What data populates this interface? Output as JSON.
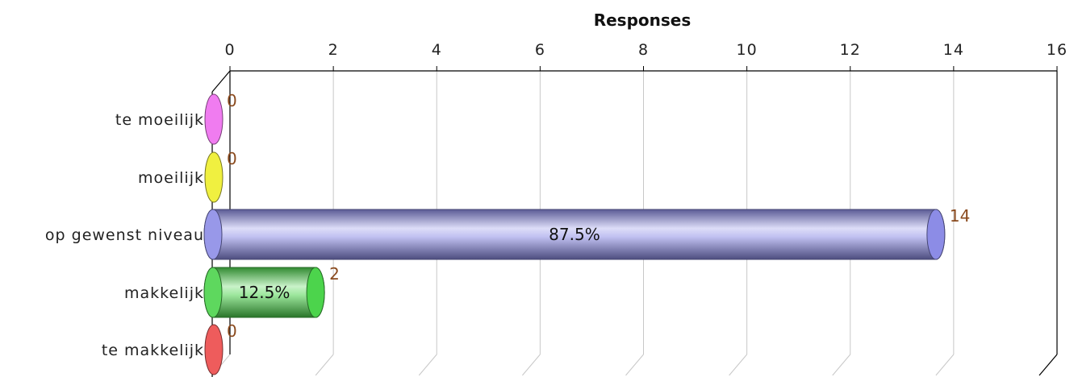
{
  "chart_data": {
    "type": "bar",
    "orientation": "horizontal",
    "title": "Responses",
    "categories": [
      "te moeilijk",
      "moeilijk",
      "op gewenst niveau",
      "makkelijk",
      "te makkelijk"
    ],
    "values": [
      0,
      0,
      14,
      2,
      0
    ],
    "value_labels": [
      "0",
      "0",
      "14",
      "2",
      "0"
    ],
    "percent_labels": [
      "",
      "",
      "87.5%",
      "12.5%",
      ""
    ],
    "colors": [
      "#f07cf0",
      "#f0f040",
      "#8c8ce6",
      "#4cd44c",
      "#ee5c5c"
    ],
    "xlim": [
      0,
      16
    ],
    "x_ticks": [
      0,
      2,
      4,
      6,
      8,
      10,
      12,
      14,
      16
    ],
    "x_tick_labels": [
      "0",
      "2",
      "4",
      "6",
      "8",
      "10",
      "12",
      "14",
      "16"
    ],
    "grid": true,
    "legend": "none"
  }
}
